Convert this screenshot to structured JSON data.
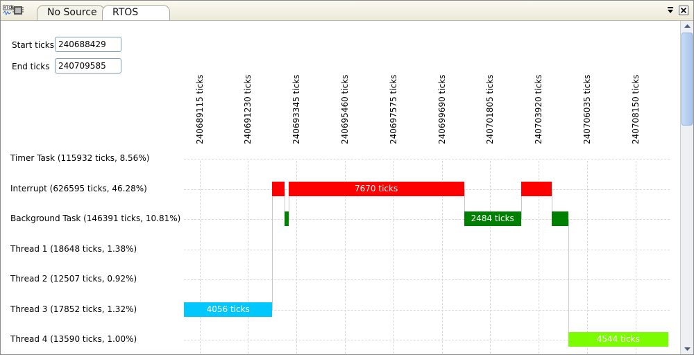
{
  "tabs": [
    {
      "label": "No Source",
      "active": false
    },
    {
      "label": "RTOS Trace",
      "active": true
    }
  ],
  "icons": {
    "view": "rtos-trace-view-icon",
    "menu": "view-menu-icon",
    "close": "close-icon"
  },
  "fields": {
    "start": {
      "label": "Start ticks",
      "value": "240688429"
    },
    "end": {
      "label": "End ticks",
      "value": "240709585"
    }
  },
  "ticks": [
    "240689115 ticks",
    "240691230 ticks",
    "240693345 ticks",
    "240695460 ticks",
    "240697575 ticks",
    "240699690 ticks",
    "240701805 ticks",
    "240703920 ticks",
    "240706035 ticks",
    "240708150 ticks"
  ],
  "rows": [
    {
      "label": "Timer Task (115932 ticks, 8.56%)"
    },
    {
      "label": "Interrupt (626595 ticks, 46.28%)"
    },
    {
      "label": "Background Task (146391 ticks, 10.81%)"
    },
    {
      "label": "Thread 1 (18648 ticks, 1.38%)"
    },
    {
      "label": "Thread 2 (12507 ticks, 0.92%)"
    },
    {
      "label": "Thread 3 (17852 ticks, 1.32%)"
    },
    {
      "label": "Thread 4 (13590 ticks, 1.00%)"
    }
  ],
  "segments": [
    {
      "row": 5,
      "start": 240688429,
      "end": 240692289,
      "label": "4056 ticks",
      "color": "#00c8ff"
    },
    {
      "row": 1,
      "start": 240692289,
      "end": 240692834,
      "label": "",
      "color": "#ff0000"
    },
    {
      "row": 2,
      "start": 240692834,
      "end": 240692994,
      "label": "",
      "color": "#008000"
    },
    {
      "row": 1,
      "start": 240692994,
      "end": 240700664,
      "label": "7670 ticks",
      "color": "#ff0000"
    },
    {
      "row": 2,
      "start": 240700664,
      "end": 240703148,
      "label": "2484 ticks",
      "color": "#008000"
    },
    {
      "row": 1,
      "start": 240703148,
      "end": 240704481,
      "label": "",
      "color": "#ff0000"
    },
    {
      "row": 2,
      "start": 240704481,
      "end": 240705208,
      "label": "",
      "color": "#008000"
    },
    {
      "row": 6,
      "start": 240705208,
      "end": 240709585,
      "label": "4544 ticks",
      "color": "#7cfc00"
    }
  ]
}
